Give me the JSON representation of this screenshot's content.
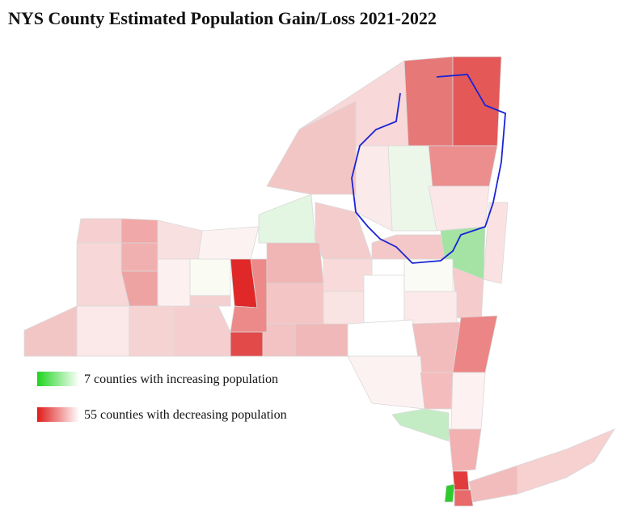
{
  "title": "NYS County Estimated Population Gain/Loss 2021-2022",
  "legend": [
    "7 counties with increasing population",
    "55 counties with decreasing population"
  ]
}
